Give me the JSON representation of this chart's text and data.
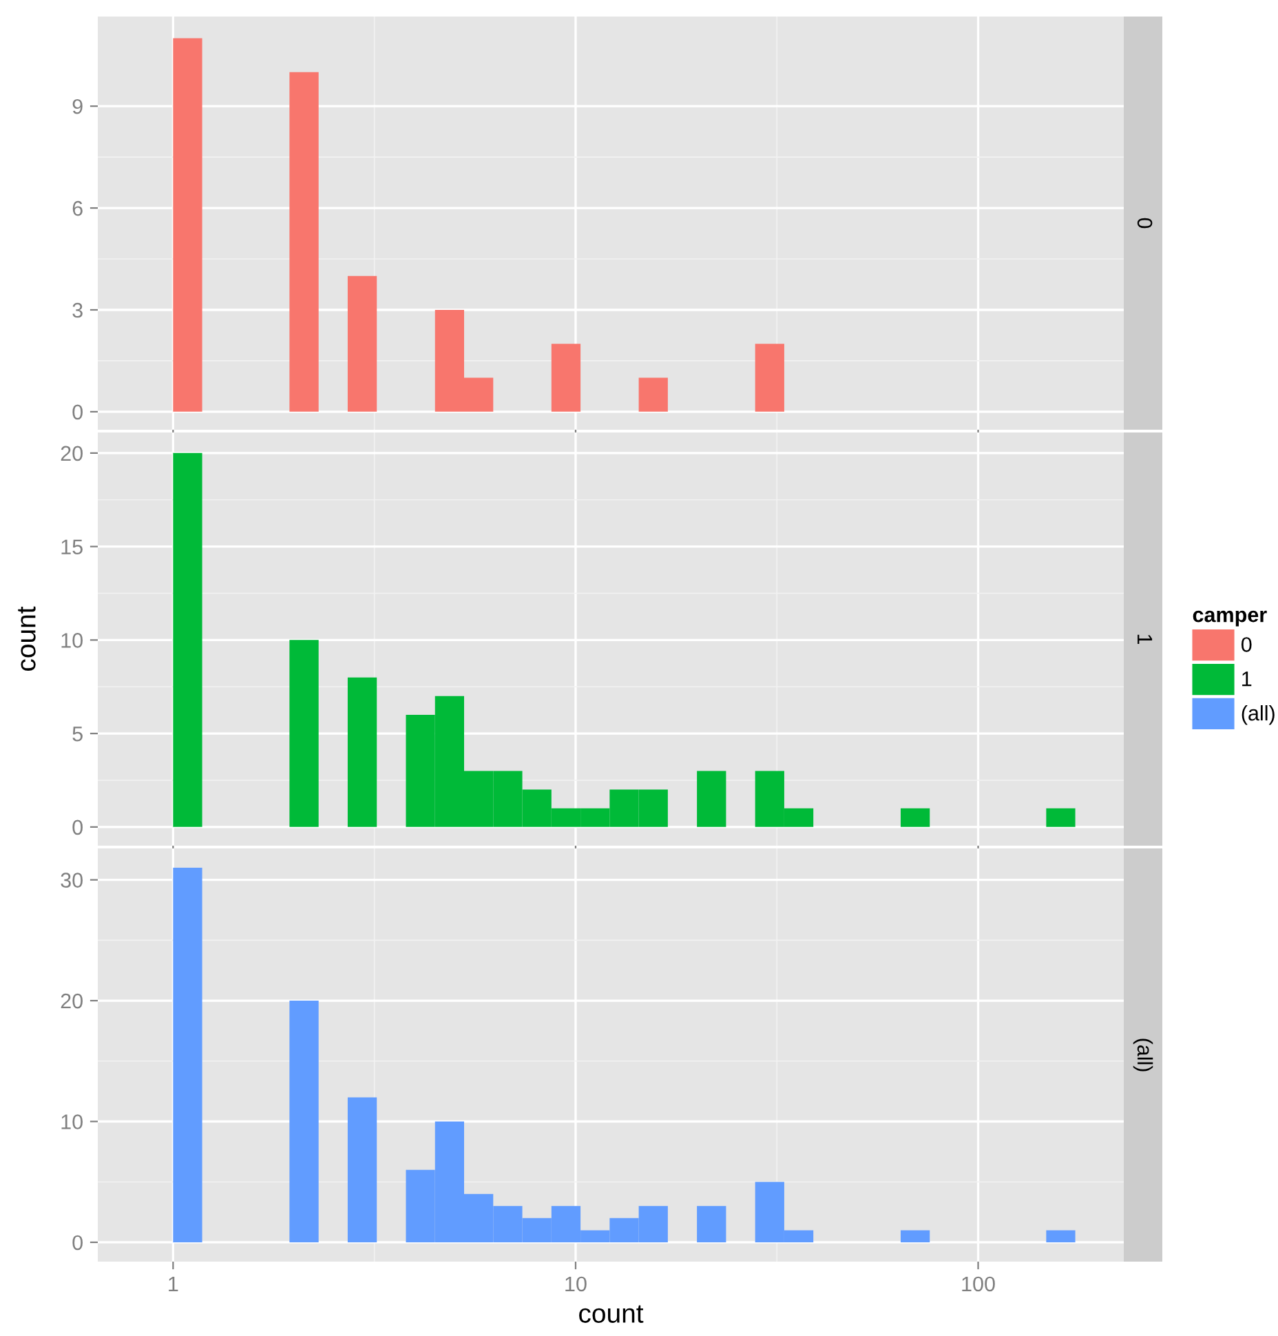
{
  "chart_data": [
    {
      "type": "histogram",
      "bins": [
        1,
        1.181,
        1.395,
        1.648,
        1.946,
        2.299,
        2.715,
        3.207,
        3.788,
        4.474,
        5.284,
        6.242,
        7.372,
        8.708,
        10.285,
        12.148,
        14.348,
        16.947,
        20.017,
        23.642,
        27.925,
        32.983,
        38.957,
        46.014,
        54.348,
        64.193,
        75.82,
        89.55,
        105.8,
        124.9,
        147.6,
        174.3
      ],
      "series": [
        {
          "name": "0",
          "color": "#f8766d",
          "values": [
            11,
            0,
            0,
            0,
            10,
            0,
            4,
            0,
            0,
            3,
            1,
            0,
            0,
            2,
            0,
            0,
            1,
            0,
            0,
            0,
            2,
            0,
            0,
            0,
            0,
            0,
            0,
            0,
            0,
            0,
            0
          ]
        }
      ],
      "log": "x",
      "xlim": [
        0.65,
        230
      ],
      "xticks": [
        1,
        10,
        100
      ],
      "ylim": [
        -0.53,
        11.64
      ],
      "yticks": [
        0,
        3,
        6,
        9
      ],
      "grid": true,
      "tick_labels": "y"
    },
    {
      "type": "histogram",
      "bins": [
        1,
        1.181,
        1.395,
        1.648,
        1.946,
        2.299,
        2.715,
        3.207,
        3.788,
        4.474,
        5.284,
        6.242,
        7.372,
        8.708,
        10.285,
        12.148,
        14.348,
        16.947,
        20.017,
        23.642,
        27.925,
        32.983,
        38.957,
        46.014,
        54.348,
        64.193,
        75.82,
        89.55,
        105.8,
        124.9,
        147.6,
        174.3
      ],
      "series": [
        {
          "name": "1",
          "color": "#00ba38",
          "values": [
            20,
            0,
            0,
            0,
            10,
            0,
            8,
            0,
            6,
            7,
            3,
            3,
            2,
            1,
            1,
            2,
            2,
            0,
            3,
            0,
            3,
            1,
            0,
            0,
            0,
            1,
            0,
            0,
            0,
            0,
            1
          ]
        }
      ],
      "log": "x",
      "xlim": [
        0.65,
        230
      ],
      "xticks": [
        1,
        10,
        100
      ],
      "ylim": [
        -1,
        21.1
      ],
      "yticks": [
        0,
        5,
        10,
        15,
        20
      ],
      "grid": true,
      "tick_labels": "y",
      "ylabel": "count",
      "legend": "right",
      "legend_title": "camper"
    },
    {
      "type": "histogram",
      "bins": [
        1,
        1.181,
        1.395,
        1.648,
        1.946,
        2.299,
        2.715,
        3.207,
        3.788,
        4.474,
        5.284,
        6.242,
        7.372,
        8.708,
        10.285,
        12.148,
        14.348,
        16.947,
        20.017,
        23.642,
        27.925,
        32.983,
        38.957,
        46.014,
        54.348,
        64.193,
        75.82,
        89.55,
        105.8,
        124.9,
        147.6,
        174.3
      ],
      "series": [
        {
          "name": "(all)",
          "color": "#619cff",
          "values": [
            31,
            0,
            0,
            0,
            20,
            0,
            12,
            0,
            6,
            10,
            4,
            3,
            2,
            3,
            1,
            2,
            3,
            0,
            3,
            0,
            5,
            1,
            0,
            0,
            0,
            1,
            0,
            0,
            0,
            0,
            1
          ]
        }
      ],
      "log": "x",
      "xlim": [
        0.65,
        230
      ],
      "xticks": [
        1,
        10,
        100
      ],
      "ylim": [
        -1.6,
        32.6
      ],
      "yticks": [
        0,
        10,
        20,
        30
      ],
      "grid": true,
      "xlabel": "count"
    }
  ]
}
